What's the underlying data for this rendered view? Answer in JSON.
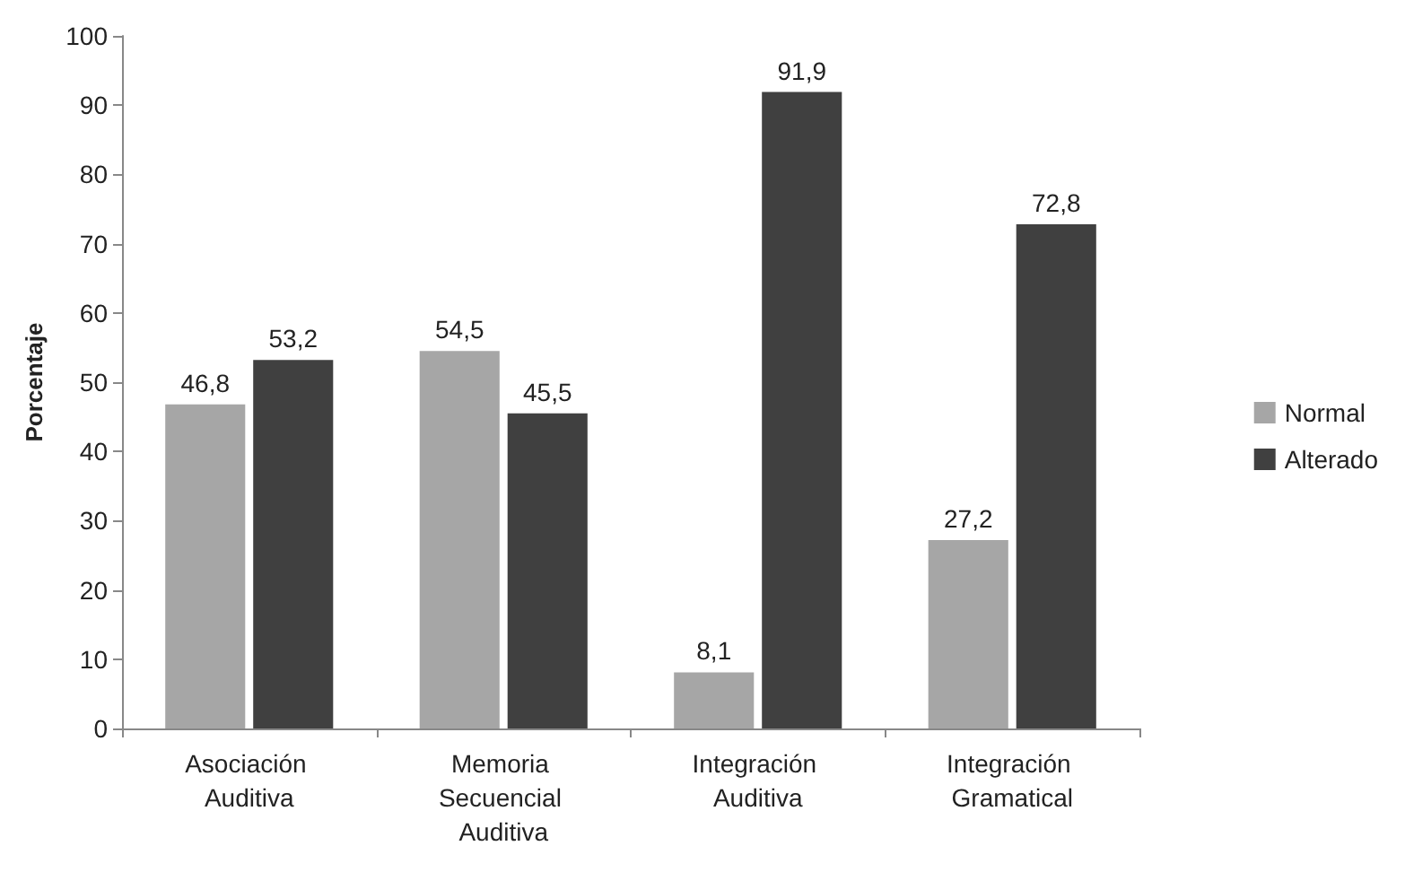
{
  "chart_data": {
    "type": "bar",
    "ylabel": "Porcentaje",
    "categories": [
      "Asociación Auditiva",
      "Memoria Secuencial Auditiva",
      "Integración Auditiva",
      "Integración Gramatical"
    ],
    "series": [
      {
        "name": "Normal",
        "color": "#a6a6a6",
        "values": [
          46.8,
          54.5,
          8.1,
          27.2
        ],
        "value_labels": [
          "46,8",
          "54,5",
          "8,1",
          "27,2"
        ]
      },
      {
        "name": "Alterado",
        "color": "#404040",
        "values": [
          53.2,
          45.5,
          91.9,
          72.8
        ],
        "value_labels": [
          "53,2",
          "45,5",
          "91,9",
          "72,8"
        ]
      }
    ],
    "ylim": [
      0,
      100
    ],
    "yticks": [
      0,
      10,
      20,
      30,
      40,
      50,
      60,
      70,
      80,
      90,
      100
    ],
    "grid": false,
    "legend": "right"
  }
}
